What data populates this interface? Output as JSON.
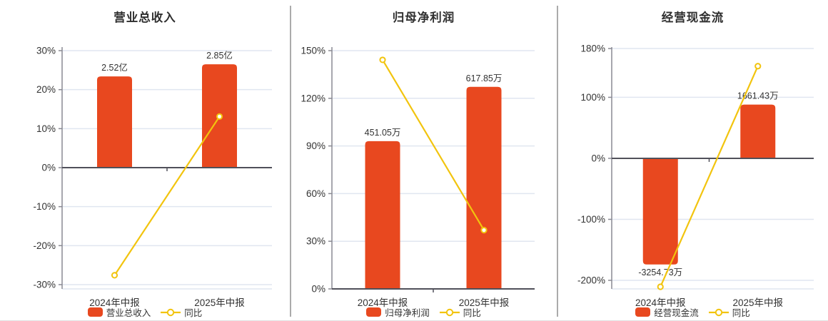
{
  "colors": {
    "bar": "#E8481F",
    "line": "#F2C40E",
    "grid": "#E0E6F0",
    "axis_dark": "#50505A",
    "axis_light": "#8A8A93",
    "text": "#333333",
    "divider": "#ABABAB"
  },
  "chart_data": [
    {
      "type": "bar",
      "title": "营业总收入",
      "categories": [
        "2024年中报",
        "2025年中报"
      ],
      "bar": {
        "name": "营业总收入",
        "value_labels": [
          "2.52亿",
          "2.85亿"
        ],
        "values": [
          2.52,
          2.85
        ],
        "unit": "亿",
        "plot_pct": [
          23.4,
          26.5
        ]
      },
      "line": {
        "name": "同比",
        "values_pct": [
          -27.6,
          13.1
        ]
      },
      "yaxis": {
        "ticks": [
          30,
          20,
          10,
          0,
          -10,
          -20,
          -30
        ],
        "tick_suffix": "%",
        "ylim": [
          -30,
          30
        ]
      },
      "grid": true,
      "legend_position": "bottom"
    },
    {
      "type": "bar",
      "title": "归母净利润",
      "categories": [
        "2024年中报",
        "2025年中报"
      ],
      "bar": {
        "name": "归母净利润",
        "value_labels": [
          "451.05万",
          "617.85万"
        ],
        "values": [
          451.05,
          617.85
        ],
        "unit": "万",
        "plot_pct": [
          93.0,
          127.2
        ]
      },
      "line": {
        "name": "同比",
        "values_pct": [
          144.2,
          37.0
        ]
      },
      "yaxis": {
        "ticks": [
          150,
          120,
          90,
          60,
          30,
          0
        ],
        "tick_suffix": "%",
        "ylim": [
          0,
          150
        ]
      },
      "grid": true,
      "legend_position": "bottom"
    },
    {
      "type": "bar",
      "title": "经营现金流",
      "categories": [
        "2024年中报",
        "2025年中报"
      ],
      "bar": {
        "name": "经营现金流",
        "value_labels": [
          "-3254.73万",
          "1661.43万"
        ],
        "values": [
          -3254.73,
          1661.43
        ],
        "unit": "万",
        "plot_pct": [
          -174.0,
          88.0
        ]
      },
      "line": {
        "name": "同比",
        "values_pct": [
          -210.5,
          151.1
        ]
      },
      "yaxis": {
        "ticks": [
          180,
          100,
          0,
          -100,
          -200
        ],
        "tick_suffix": "%",
        "ylim": [
          -200,
          180
        ]
      },
      "grid": true,
      "legend_position": "bottom"
    }
  ]
}
